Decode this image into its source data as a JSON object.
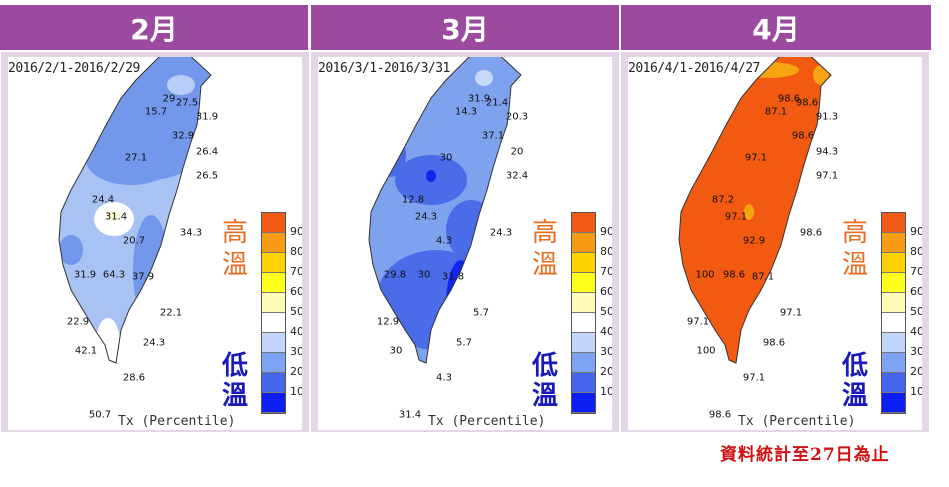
{
  "panels": [
    {
      "month": "2月",
      "date_range": "2016/2/1-2016/2/29",
      "base_color": "#a9c2f4",
      "region_color": "#7397ea",
      "deep_color": "#7397ea",
      "spot_color": "#fffbd0",
      "stations": [
        "29",
        "15.7",
        "27.5",
        "31.9",
        "32.9",
        "26.4",
        "27.1",
        "26.5",
        "24.4",
        "31.4",
        "34.3",
        "20.7",
        "31.9",
        "64.3",
        "37.9",
        "22.1",
        "22.9",
        "24.3",
        "42.1",
        "28.6",
        "50.7"
      ]
    },
    {
      "month": "3月",
      "date_range": "2016/3/1-2016/3/31",
      "base_color": "#7ea2ee",
      "region_color": "#4a6ce8",
      "deep_color": "#1326f0",
      "spot_color": "#c9d9fa",
      "stations": [
        "31.9",
        "14.3",
        "21.4",
        "20.3",
        "37.1",
        "20",
        "30",
        "32.4",
        "12.8",
        "24.3",
        "24.3",
        "4.3",
        "29.8",
        "30",
        "31.8",
        "5.7",
        "12.9",
        "5.7",
        "30",
        "4.3",
        "31.4"
      ]
    },
    {
      "month": "4月",
      "date_range": "2016/4/1-2016/4/27",
      "base_color": "#f25a12",
      "region_color": "#f25a12",
      "deep_color": "#f25a12",
      "spot_color": "#f7a312",
      "stations": [
        "98.6",
        "87.1",
        "98.6",
        "91.3",
        "98.6",
        "94.3",
        "97.1",
        "97.1",
        "87.2",
        "97.1",
        "98.6",
        "92.9",
        "100",
        "98.6",
        "87.1",
        "97.1",
        "97.1",
        "98.6",
        "100",
        "97.1",
        "98.6"
      ]
    }
  ],
  "legend": {
    "hot_label": "高溫",
    "cold_label": "低溫",
    "axis_title": "Tx (Percentile)",
    "ticks": [
      "90",
      "80",
      "70",
      "60",
      "50",
      "40",
      "30",
      "20",
      "10"
    ],
    "colors": [
      "#f05a14",
      "#f79b14",
      "#fcd202",
      "#ffff1e",
      "#fffbb9",
      "#ffffff",
      "#c2d6fb",
      "#7ea3f2",
      "#4565ec",
      "#0c1ef3"
    ]
  },
  "footer_note": "資料統計至27日為止"
}
